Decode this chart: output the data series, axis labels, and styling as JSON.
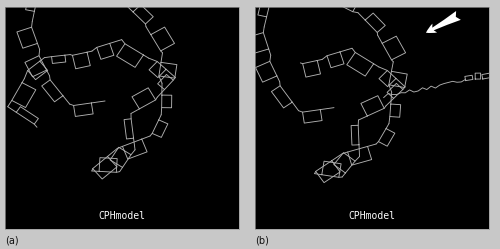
{
  "fig_width": 5.0,
  "fig_height": 2.49,
  "dpi": 100,
  "bg_color": "#c8c8c8",
  "panel_bg": "#000000",
  "line_color": "#b0b0b0",
  "label_a": "(a)",
  "label_b": "(b)",
  "text_cph": "CPHmodel",
  "text_color": "#ffffff",
  "text_fontsize": 7,
  "label_fontsize": 7,
  "arrow_color": "#ffffff",
  "panel_edge_color": "#999999",
  "panel_edge_lw": 0.5
}
